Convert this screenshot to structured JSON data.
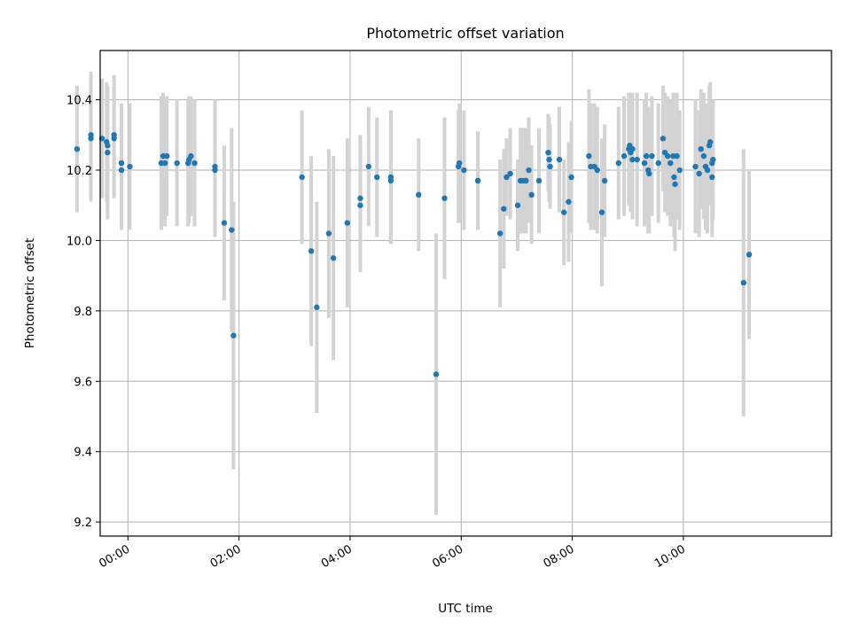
{
  "chart_data": {
    "type": "scatter",
    "title": "Photometric offset variation",
    "xlabel": "UTC time",
    "ylabel": "Photometric offset",
    "grid": true,
    "legend": "none",
    "colors": {
      "points": "#1f77b4",
      "errorbars": "#d3d3d3",
      "grid": "#b0b0b0"
    },
    "xlim": [
      "23:30",
      "12:40"
    ],
    "ylim": [
      9.16,
      10.54
    ],
    "x_ticks": [
      "00:00",
      "02:00",
      "04:00",
      "06:00",
      "08:00",
      "10:00"
    ],
    "y_ticks": [
      "9.2",
      "9.4",
      "9.6",
      "9.8",
      "10.0",
      "10.2",
      "10.4"
    ],
    "series": [
      {
        "points": [
          {
            "x": "23:05",
            "y": 10.26,
            "err": 0.18
          },
          {
            "x": "23:20",
            "y": 10.3,
            "err": 0.18
          },
          {
            "x": "23:20",
            "y": 10.29,
            "err": 0.18
          },
          {
            "x": "23:32",
            "y": 10.29,
            "err": 0.17
          },
          {
            "x": "23:37",
            "y": 10.28,
            "err": 0.17
          },
          {
            "x": "23:38",
            "y": 10.27,
            "err": 0.17
          },
          {
            "x": "23:38",
            "y": 10.25,
            "err": 0.19
          },
          {
            "x": "23:45",
            "y": 10.3,
            "err": 0.17
          },
          {
            "x": "23:45",
            "y": 10.29,
            "err": 0.17
          },
          {
            "x": "23:53",
            "y": 10.22,
            "err": 0.17
          },
          {
            "x": "23:53",
            "y": 10.2,
            "err": 0.17
          },
          {
            "x": "00:02",
            "y": 10.21,
            "err": 0.18
          },
          {
            "x": "00:36",
            "y": 10.22,
            "err": 0.19
          },
          {
            "x": "00:38",
            "y": 10.24,
            "err": 0.18
          },
          {
            "x": "00:40",
            "y": 10.22,
            "err": 0.18
          },
          {
            "x": "00:42",
            "y": 10.24,
            "err": 0.17
          },
          {
            "x": "00:53",
            "y": 10.22,
            "err": 0.18
          },
          {
            "x": "01:05",
            "y": 10.22,
            "err": 0.18
          },
          {
            "x": "01:06",
            "y": 10.23,
            "err": 0.18
          },
          {
            "x": "01:08",
            "y": 10.24,
            "err": 0.17
          },
          {
            "x": "01:12",
            "y": 10.22,
            "err": 0.18
          },
          {
            "x": "01:34",
            "y": 10.2,
            "err": 0.19
          },
          {
            "x": "01:34",
            "y": 10.21,
            "err": 0.19
          },
          {
            "x": "01:44",
            "y": 10.05,
            "err": 0.22
          },
          {
            "x": "01:52",
            "y": 10.03,
            "err": 0.29
          },
          {
            "x": "01:54",
            "y": 9.73,
            "err": 0.38
          },
          {
            "x": "03:08",
            "y": 10.18,
            "err": 0.19
          },
          {
            "x": "03:18",
            "y": 9.97,
            "err": 0.27
          },
          {
            "x": "03:24",
            "y": 9.81,
            "err": 0.3
          },
          {
            "x": "03:37",
            "y": 10.02,
            "err": 0.24
          },
          {
            "x": "03:42",
            "y": 9.95,
            "err": 0.29
          },
          {
            "x": "03:57",
            "y": 10.05,
            "err": 0.24
          },
          {
            "x": "04:11",
            "y": 10.1,
            "err": 0.19
          },
          {
            "x": "04:11",
            "y": 10.12,
            "err": 0.18
          },
          {
            "x": "04:20",
            "y": 10.21,
            "err": 0.17
          },
          {
            "x": "04:29",
            "y": 10.18,
            "err": 0.17
          },
          {
            "x": "04:44",
            "y": 10.18,
            "err": 0.19
          },
          {
            "x": "04:44",
            "y": 10.17,
            "err": 0.17
          },
          {
            "x": "05:14",
            "y": 10.13,
            "err": 0.16
          },
          {
            "x": "05:33",
            "y": 9.62,
            "err": 0.4
          },
          {
            "x": "05:42",
            "y": 10.12,
            "err": 0.23
          },
          {
            "x": "05:57",
            "y": 10.21,
            "err": 0.16
          },
          {
            "x": "05:58",
            "y": 10.22,
            "err": 0.17
          },
          {
            "x": "06:03",
            "y": 10.2,
            "err": 0.17
          },
          {
            "x": "06:18",
            "y": 10.17,
            "err": 0.14
          },
          {
            "x": "06:18",
            "y": 10.17,
            "err": 0.14
          },
          {
            "x": "06:42",
            "y": 10.02,
            "err": 0.21
          },
          {
            "x": "06:46",
            "y": 10.09,
            "err": 0.17
          },
          {
            "x": "06:49",
            "y": 10.18,
            "err": 0.11
          },
          {
            "x": "06:53",
            "y": 10.19,
            "err": 0.13
          },
          {
            "x": "07:01",
            "y": 10.1,
            "err": 0.13
          },
          {
            "x": "07:04",
            "y": 10.17,
            "err": 0.15
          },
          {
            "x": "07:07",
            "y": 10.17,
            "err": 0.15
          },
          {
            "x": "07:10",
            "y": 10.17,
            "err": 0.15
          },
          {
            "x": "07:13",
            "y": 10.2,
            "err": 0.15
          },
          {
            "x": "07:16",
            "y": 10.13,
            "err": 0.14
          },
          {
            "x": "07:24",
            "y": 10.17,
            "err": 0.15
          },
          {
            "x": "07:34",
            "y": 10.25,
            "err": 0.11
          },
          {
            "x": "07:35",
            "y": 10.23,
            "err": 0.12
          },
          {
            "x": "07:36",
            "y": 10.21,
            "err": 0.12
          },
          {
            "x": "07:46",
            "y": 10.23,
            "err": 0.15
          },
          {
            "x": "07:51",
            "y": 10.08,
            "err": 0.15
          },
          {
            "x": "07:56",
            "y": 10.11,
            "err": 0.17
          },
          {
            "x": "07:59",
            "y": 10.18,
            "err": 0.16
          },
          {
            "x": "08:18",
            "y": 10.24,
            "err": 0.19
          },
          {
            "x": "08:20",
            "y": 10.21,
            "err": 0.18
          },
          {
            "x": "08:24",
            "y": 10.21,
            "err": 0.18
          },
          {
            "x": "08:27",
            "y": 10.2,
            "err": 0.18
          },
          {
            "x": "08:32",
            "y": 10.08,
            "err": 0.21
          },
          {
            "x": "08:35",
            "y": 10.17,
            "err": 0.16
          },
          {
            "x": "08:50",
            "y": 10.22,
            "err": 0.16
          },
          {
            "x": "08:56",
            "y": 10.24,
            "err": 0.17
          },
          {
            "x": "09:01",
            "y": 10.26,
            "err": 0.16
          },
          {
            "x": "09:02",
            "y": 10.27,
            "err": 0.15
          },
          {
            "x": "09:03",
            "y": 10.25,
            "err": 0.17
          },
          {
            "x": "09:05",
            "y": 10.23,
            "err": 0.17
          },
          {
            "x": "09:05",
            "y": 10.26,
            "err": 0.16
          },
          {
            "x": "09:10",
            "y": 10.23,
            "err": 0.19
          },
          {
            "x": "09:18",
            "y": 10.22,
            "err": 0.18
          },
          {
            "x": "09:20",
            "y": 10.24,
            "err": 0.18
          },
          {
            "x": "09:22",
            "y": 10.2,
            "err": 0.18
          },
          {
            "x": "09:23",
            "y": 10.19,
            "err": 0.17
          },
          {
            "x": "09:26",
            "y": 10.24,
            "err": 0.17
          },
          {
            "x": "09:33",
            "y": 10.22,
            "err": 0.17
          },
          {
            "x": "09:38",
            "y": 10.29,
            "err": 0.15
          },
          {
            "x": "09:40",
            "y": 10.25,
            "err": 0.17
          },
          {
            "x": "09:43",
            "y": 10.24,
            "err": 0.17
          },
          {
            "x": "09:46",
            "y": 10.22,
            "err": 0.18
          },
          {
            "x": "09:49",
            "y": 10.24,
            "err": 0.18
          },
          {
            "x": "09:50",
            "y": 10.18,
            "err": 0.17
          },
          {
            "x": "09:51",
            "y": 10.16,
            "err": 0.19
          },
          {
            "x": "09:53",
            "y": 10.24,
            "err": 0.18
          },
          {
            "x": "09:56",
            "y": 10.2,
            "err": 0.17
          },
          {
            "x": "10:13",
            "y": 10.21,
            "err": 0.19
          },
          {
            "x": "10:17",
            "y": 10.19,
            "err": 0.18
          },
          {
            "x": "10:19",
            "y": 10.26,
            "err": 0.17
          },
          {
            "x": "10:22",
            "y": 10.24,
            "err": 0.18
          },
          {
            "x": "10:24",
            "y": 10.21,
            "err": 0.18
          },
          {
            "x": "10:26",
            "y": 10.2,
            "err": 0.18
          },
          {
            "x": "10:28",
            "y": 10.27,
            "err": 0.17
          },
          {
            "x": "10:29",
            "y": 10.28,
            "err": 0.17
          },
          {
            "x": "10:31",
            "y": 10.22,
            "err": 0.17
          },
          {
            "x": "10:31",
            "y": 10.18,
            "err": 0.17
          },
          {
            "x": "10:32",
            "y": 10.23,
            "err": 0.17
          },
          {
            "x": "11:05",
            "y": 9.88,
            "err": 0.38
          },
          {
            "x": "11:11",
            "y": 9.96,
            "err": 0.24
          }
        ]
      }
    ]
  }
}
